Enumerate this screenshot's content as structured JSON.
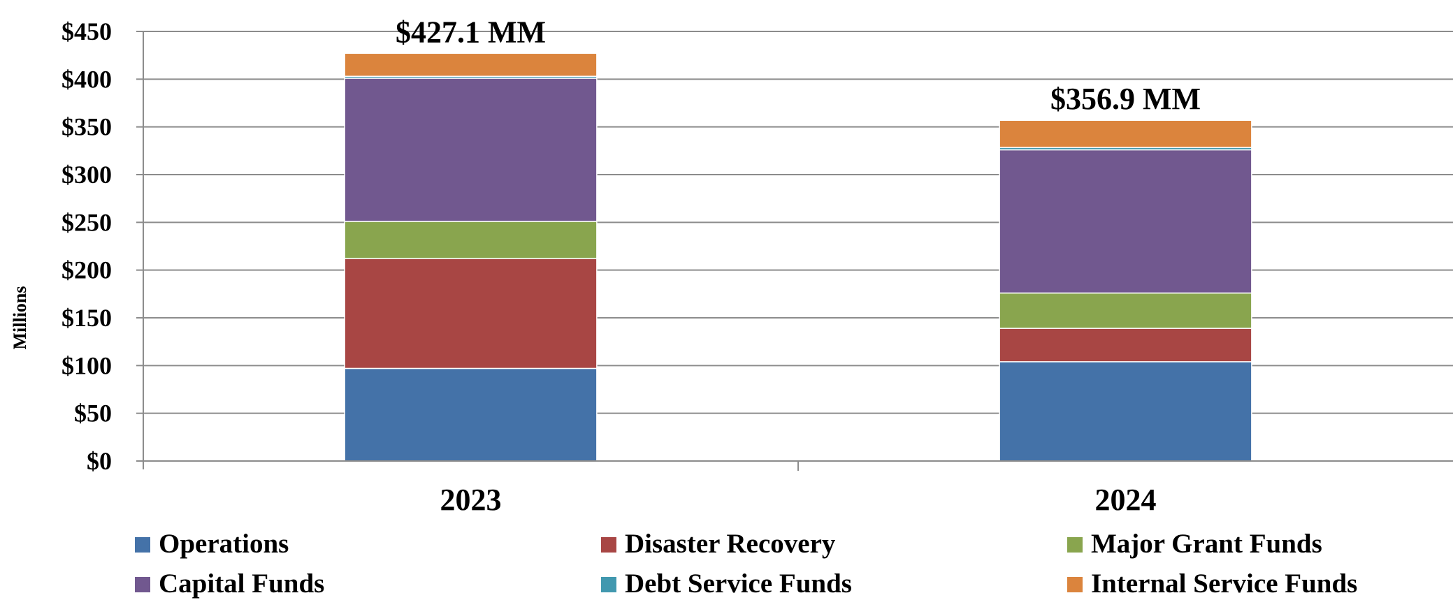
{
  "chart_data": {
    "type": "bar",
    "stacked": true,
    "categories": [
      "2023",
      "2024"
    ],
    "series": [
      {
        "name": "Operations",
        "color": "#4472A8",
        "values": [
          97.0,
          104.0
        ]
      },
      {
        "name": "Disaster Recovery",
        "color": "#A84644",
        "values": [
          115.0,
          35.0
        ]
      },
      {
        "name": "Major Grant Funds",
        "color": "#89A54E",
        "values": [
          39.0,
          37.0
        ]
      },
      {
        "name": "Capital Funds",
        "color": "#71588F",
        "values": [
          150.0,
          150.0
        ]
      },
      {
        "name": "Debt Service Funds",
        "color": "#4198AF",
        "values": [
          2.0,
          2.5
        ]
      },
      {
        "name": "Internal Service Funds",
        "color": "#DB843D",
        "values": [
          24.1,
          28.4
        ]
      }
    ],
    "totals": [
      "$427.1 MM",
      "$356.9 MM"
    ],
    "ylabel": "Millions",
    "xlabel": "",
    "ylim": [
      0,
      450
    ],
    "yticks": [
      0,
      50,
      100,
      150,
      200,
      250,
      300,
      350,
      400,
      450
    ],
    "ytick_labels": [
      "$0",
      "$50",
      "$100",
      "$150",
      "$200",
      "$250",
      "$300",
      "$350",
      "$400",
      "$450"
    ],
    "grid": true,
    "legend_position": "bottom"
  }
}
